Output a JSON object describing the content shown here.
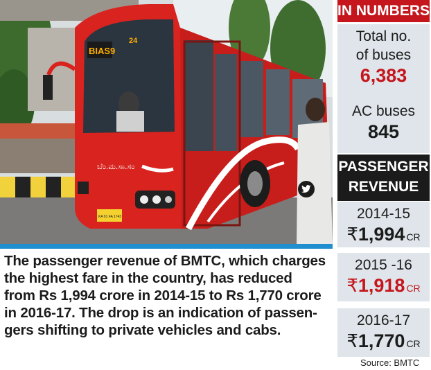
{
  "photo": {
    "bus_route_sign": "BIAS9",
    "bus_number": "24",
    "bus_script_text": "ಬೆಂ.ಮ.ಸಾ.ಸಂ",
    "plate": "KA 01 FA 1743"
  },
  "twitter_icon": "twitter-bird-icon",
  "caption": {
    "lines": [
      "The passenger revenue of BMTC, which charges",
      "the highest fare in the country, has reduced",
      "from Rs 1,994 crore in 2014-15 to Rs 1,770 crore",
      "in 2016-17. The drop is an indication of passen-",
      "gers shifting to private vehicles and cabs."
    ]
  },
  "sidebar": {
    "header": "IN NUMBERS",
    "total_buses": {
      "label_line1": "Total no.",
      "label_line2": "of buses",
      "value": "6,383"
    },
    "ac_buses": {
      "label": "AC buses",
      "value": "845"
    },
    "revenue_header": {
      "line1": "PASSENGER",
      "line2": "REVENUE"
    },
    "currency_symbol": "₹",
    "unit": "CR",
    "revenue": [
      {
        "year": "2014-15",
        "value": "1,994"
      },
      {
        "year": "2015 -16",
        "value": "1,918"
      },
      {
        "year": "2016-17",
        "value": "1,770"
      }
    ]
  },
  "source": "Source: BMTC",
  "colors": {
    "accent_red": "#c4161c",
    "dark": "#1b1b1b",
    "panel": "#dfe5ea",
    "rule_blue": "#1f8fcf"
  }
}
